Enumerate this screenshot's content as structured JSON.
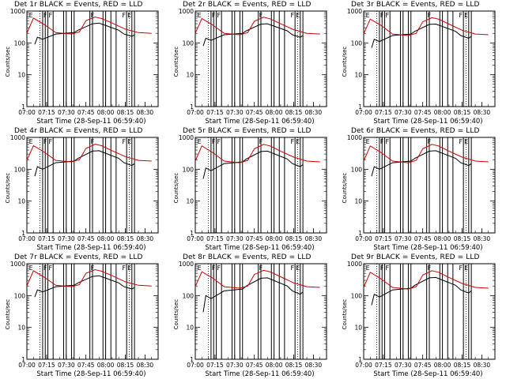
{
  "chart_data": [
    {
      "type": "line",
      "title": "Det 1r BLACK = Events, RED = LLD",
      "xlabel": "Start Time (28-Sep-11 06:59:40)",
      "ylabel": "Counts/sec",
      "yscale": "log",
      "ylim": [
        1,
        1000
      ],
      "xlim": [
        "07:00",
        "08:40"
      ],
      "x_ticks": [
        "07:00",
        "07:15",
        "07:30",
        "07:45",
        "08:00",
        "08:15",
        "08:30"
      ],
      "y_ticks": [
        "1",
        "10",
        "100",
        "1000"
      ],
      "series": [
        {
          "color": "#000000",
          "x": [
            "07:06",
            "07:08",
            "07:12",
            "07:22",
            "07:36",
            "07:39",
            "07:50",
            "07:55",
            "08:10",
            "08:14",
            "08:20",
            "08:22"
          ],
          "values": [
            90,
            150,
            130,
            190,
            210,
            250,
            400,
            420,
            250,
            190,
            160,
            180
          ]
        },
        {
          "color": "#cc0000",
          "x": [
            "07:00",
            "07:05",
            "07:13",
            "07:22",
            "07:34",
            "07:40",
            "07:45",
            "07:52",
            "07:57",
            "08:05",
            "08:15",
            "08:25",
            "08:35"
          ],
          "values": [
            200,
            600,
            380,
            210,
            190,
            220,
            500,
            650,
            580,
            420,
            270,
            210,
            200
          ]
        }
      ],
      "event_markers": [
        {
          "x": "07:01",
          "label": "E"
        },
        {
          "x": "07:12",
          "label": "F"
        },
        {
          "x": "07:16",
          "label": "F"
        },
        {
          "x": "07:48",
          "label": "F"
        },
        {
          "x": "08:12",
          "label": "F"
        },
        {
          "x": "08:16",
          "label": "E"
        }
      ]
    },
    {
      "type": "line",
      "title": "Det 2r BLACK = Events, RED = LLD",
      "xlabel": "Start Time (28-Sep-11 06:59:40)",
      "ylabel": "Counts/sec",
      "yscale": "log",
      "ylim": [
        1,
        1000
      ],
      "xlim": [
        "07:00",
        "08:40"
      ],
      "x_ticks": [
        "07:00",
        "07:15",
        "07:30",
        "07:45",
        "08:00",
        "08:15",
        "08:30"
      ],
      "y_ticks": [
        "1",
        "10",
        "100",
        "1000"
      ],
      "series": [
        {
          "color": "#000000",
          "x": [
            "07:06",
            "07:08",
            "07:12",
            "07:22",
            "07:36",
            "07:39",
            "07:50",
            "07:55",
            "08:10",
            "08:14",
            "08:20",
            "08:22"
          ],
          "values": [
            80,
            140,
            120,
            180,
            200,
            240,
            390,
            400,
            240,
            180,
            150,
            170
          ]
        },
        {
          "color": "#cc0000",
          "x": [
            "07:00",
            "07:05",
            "07:13",
            "07:22",
            "07:34",
            "07:40",
            "07:45",
            "07:52",
            "07:57",
            "08:05",
            "08:15",
            "08:25",
            "08:35"
          ],
          "values": [
            200,
            580,
            370,
            200,
            180,
            210,
            480,
            640,
            570,
            400,
            260,
            200,
            190
          ]
        }
      ],
      "event_markers": [
        {
          "x": "07:01",
          "label": "E"
        },
        {
          "x": "07:12",
          "label": "F"
        },
        {
          "x": "07:16",
          "label": "F"
        },
        {
          "x": "07:48",
          "label": "F"
        },
        {
          "x": "08:12",
          "label": "F"
        },
        {
          "x": "08:16",
          "label": "E"
        }
      ]
    },
    {
      "type": "line",
      "title": "Det 3r BLACK = Events, RED = LLD",
      "xlabel": "Start Time (28-Sep-11 06:59:40)",
      "ylabel": "Counts/sec",
      "yscale": "log",
      "ylim": [
        1,
        1000
      ],
      "xlim": [
        "07:00",
        "08:40"
      ],
      "x_ticks": [
        "07:00",
        "07:15",
        "07:30",
        "07:45",
        "08:00",
        "08:15",
        "08:30"
      ],
      "y_ticks": [
        "1",
        "10",
        "100",
        "1000"
      ],
      "series": [
        {
          "color": "#000000",
          "x": [
            "07:06",
            "07:08",
            "07:12",
            "07:22",
            "07:36",
            "07:39",
            "07:50",
            "07:55",
            "08:10",
            "08:14",
            "08:20",
            "08:22"
          ],
          "values": [
            70,
            130,
            110,
            170,
            190,
            230,
            380,
            390,
            230,
            170,
            140,
            160
          ]
        },
        {
          "color": "#cc0000",
          "x": [
            "07:00",
            "07:05",
            "07:13",
            "07:22",
            "07:34",
            "07:40",
            "07:45",
            "07:52",
            "07:57",
            "08:05",
            "08:15",
            "08:25",
            "08:35"
          ],
          "values": [
            190,
            560,
            360,
            190,
            170,
            200,
            460,
            620,
            560,
            390,
            250,
            190,
            180
          ]
        }
      ],
      "event_markers": [
        {
          "x": "07:01",
          "label": "E"
        },
        {
          "x": "07:12",
          "label": "F"
        },
        {
          "x": "07:16",
          "label": "F"
        },
        {
          "x": "07:48",
          "label": "F"
        },
        {
          "x": "08:12",
          "label": "F"
        },
        {
          "x": "08:16",
          "label": "E"
        }
      ]
    },
    {
      "type": "line",
      "title": "Det 4r BLACK = Events, RED = LLD",
      "xlabel": "Start Time (28-Sep-11 06:59:40)",
      "ylabel": "Counts/sec",
      "yscale": "log",
      "ylim": [
        1,
        1000
      ],
      "xlim": [
        "07:00",
        "08:40"
      ],
      "x_ticks": [
        "07:00",
        "07:15",
        "07:30",
        "07:45",
        "08:00",
        "08:15",
        "08:30"
      ],
      "y_ticks": [
        "1",
        "10",
        "100",
        "1000"
      ],
      "series": [
        {
          "color": "#000000",
          "x": [
            "07:06",
            "07:08",
            "07:12",
            "07:22",
            "07:36",
            "07:39",
            "07:50",
            "07:55",
            "08:10",
            "08:14",
            "08:20",
            "08:22"
          ],
          "values": [
            60,
            120,
            100,
            160,
            180,
            220,
            370,
            380,
            220,
            160,
            130,
            150
          ]
        },
        {
          "color": "#cc0000",
          "x": [
            "07:00",
            "07:05",
            "07:13",
            "07:22",
            "07:34",
            "07:40",
            "07:45",
            "07:52",
            "07:57",
            "08:05",
            "08:15",
            "08:25",
            "08:35"
          ],
          "values": [
            190,
            550,
            350,
            190,
            170,
            200,
            450,
            610,
            550,
            380,
            250,
            190,
            180
          ]
        }
      ],
      "event_markers": [
        {
          "x": "07:01",
          "label": "E"
        },
        {
          "x": "07:12",
          "label": "F"
        },
        {
          "x": "07:16",
          "label": "F"
        },
        {
          "x": "07:48",
          "label": "F"
        },
        {
          "x": "08:12",
          "label": "F"
        },
        {
          "x": "08:16",
          "label": "E"
        }
      ]
    },
    {
      "type": "line",
      "title": "Det 5r BLACK = Events, RED = LLD",
      "xlabel": "Start Time (28-Sep-11 06:59:40)",
      "ylabel": "Counts/sec",
      "yscale": "log",
      "ylim": [
        1,
        1000
      ],
      "xlim": [
        "07:00",
        "08:40"
      ],
      "x_ticks": [
        "07:00",
        "07:15",
        "07:30",
        "07:45",
        "08:00",
        "08:15",
        "08:30"
      ],
      "y_ticks": [
        "1",
        "10",
        "100",
        "1000"
      ],
      "series": [
        {
          "color": "#000000",
          "x": [
            "07:06",
            "07:08",
            "07:12",
            "07:22",
            "07:36",
            "07:39",
            "07:50",
            "07:55",
            "08:10",
            "08:14",
            "08:20",
            "08:22"
          ],
          "values": [
            50,
            110,
            90,
            150,
            170,
            210,
            360,
            370,
            210,
            150,
            120,
            140
          ]
        },
        {
          "color": "#cc0000",
          "x": [
            "07:00",
            "07:05",
            "07:13",
            "07:22",
            "07:34",
            "07:40",
            "07:45",
            "07:52",
            "07:57",
            "08:05",
            "08:15",
            "08:25",
            "08:35"
          ],
          "values": [
            180,
            540,
            340,
            180,
            160,
            190,
            440,
            600,
            540,
            370,
            240,
            180,
            170
          ]
        }
      ],
      "event_markers": [
        {
          "x": "07:01",
          "label": "E"
        },
        {
          "x": "07:12",
          "label": "F"
        },
        {
          "x": "07:16",
          "label": "F"
        },
        {
          "x": "07:48",
          "label": "F"
        },
        {
          "x": "08:12",
          "label": "F"
        },
        {
          "x": "08:16",
          "label": "E"
        }
      ]
    },
    {
      "type": "line",
      "title": "Det 6r BLACK = Events, RED = LLD",
      "xlabel": "Start Time (28-Sep-11 06:59:40)",
      "ylabel": "Counts/sec",
      "yscale": "log",
      "ylim": [
        1,
        1000
      ],
      "xlim": [
        "07:00",
        "08:40"
      ],
      "x_ticks": [
        "07:00",
        "07:15",
        "07:30",
        "07:45",
        "08:00",
        "08:15",
        "08:30"
      ],
      "y_ticks": [
        "1",
        "10",
        "100",
        "1000"
      ],
      "series": [
        {
          "color": "#000000",
          "x": [
            "07:06",
            "07:08",
            "07:12",
            "07:22",
            "07:36",
            "07:39",
            "07:50",
            "07:55",
            "08:10",
            "08:14",
            "08:20",
            "08:22"
          ],
          "values": [
            60,
            120,
            100,
            160,
            180,
            220,
            370,
            380,
            220,
            160,
            130,
            150
          ]
        },
        {
          "color": "#cc0000",
          "x": [
            "07:00",
            "07:05",
            "07:13",
            "07:22",
            "07:34",
            "07:40",
            "07:45",
            "07:52",
            "07:57",
            "08:05",
            "08:15",
            "08:25",
            "08:35"
          ],
          "values": [
            180,
            540,
            340,
            180,
            160,
            190,
            440,
            600,
            540,
            370,
            240,
            180,
            170
          ]
        }
      ],
      "event_markers": [
        {
          "x": "07:01",
          "label": "E"
        },
        {
          "x": "07:12",
          "label": "F"
        },
        {
          "x": "07:16",
          "label": "F"
        },
        {
          "x": "07:48",
          "label": "F"
        },
        {
          "x": "08:12",
          "label": "F"
        },
        {
          "x": "08:16",
          "label": "E"
        }
      ]
    },
    {
      "type": "line",
      "title": "Det 7r BLACK = Events, RED = LLD",
      "xlabel": "Start Time (28-Sep-11 06:59:40)",
      "ylabel": "Counts/sec",
      "yscale": "log",
      "ylim": [
        1,
        1000
      ],
      "xlim": [
        "07:00",
        "08:40"
      ],
      "x_ticks": [
        "07:00",
        "07:15",
        "07:30",
        "07:45",
        "08:00",
        "08:15",
        "08:30"
      ],
      "y_ticks": [
        "1",
        "10",
        "100",
        "1000"
      ],
      "series": [
        {
          "color": "#000000",
          "x": [
            "07:06",
            "07:08",
            "07:12",
            "07:22",
            "07:36",
            "07:39",
            "07:50",
            "07:55",
            "08:10",
            "08:14",
            "08:20",
            "08:22"
          ],
          "values": [
            90,
            150,
            130,
            190,
            210,
            250,
            400,
            420,
            250,
            190,
            160,
            180
          ]
        },
        {
          "color": "#cc0000",
          "x": [
            "07:00",
            "07:05",
            "07:13",
            "07:22",
            "07:34",
            "07:40",
            "07:45",
            "07:52",
            "07:57",
            "08:05",
            "08:15",
            "08:25",
            "08:35"
          ],
          "values": [
            200,
            600,
            380,
            210,
            190,
            220,
            500,
            650,
            580,
            420,
            270,
            210,
            200
          ]
        }
      ],
      "event_markers": [
        {
          "x": "07:01",
          "label": "E"
        },
        {
          "x": "07:12",
          "label": "F"
        },
        {
          "x": "07:16",
          "label": "F"
        },
        {
          "x": "07:48",
          "label": "F"
        },
        {
          "x": "08:12",
          "label": "F"
        },
        {
          "x": "08:16",
          "label": "E"
        }
      ]
    },
    {
      "type": "line",
      "title": "Det 8r BLACK = Events, RED = LLD",
      "xlabel": "Start Time (28-Sep-11 06:59:40)",
      "ylabel": "Counts/sec",
      "yscale": "log",
      "ylim": [
        1,
        1000
      ],
      "xlim": [
        "07:00",
        "08:40"
      ],
      "x_ticks": [
        "07:00",
        "07:15",
        "07:30",
        "07:45",
        "08:00",
        "08:15",
        "08:30"
      ],
      "y_ticks": [
        "1",
        "10",
        "100",
        "1000"
      ],
      "series": [
        {
          "color": "#000000",
          "x": [
            "07:06",
            "07:08",
            "07:12",
            "07:22",
            "07:36",
            "07:39",
            "07:50",
            "07:55",
            "08:10",
            "08:14",
            "08:20",
            "08:22"
          ],
          "values": [
            30,
            100,
            80,
            140,
            160,
            200,
            350,
            360,
            200,
            140,
            110,
            130
          ]
        },
        {
          "color": "#cc0000",
          "x": [
            "07:00",
            "07:05",
            "07:13",
            "07:22",
            "07:34",
            "07:40",
            "07:45",
            "07:52",
            "07:57",
            "08:05",
            "08:15",
            "08:25",
            "08:35"
          ],
          "values": [
            190,
            560,
            360,
            190,
            170,
            200,
            460,
            620,
            560,
            390,
            250,
            190,
            180
          ]
        }
      ],
      "event_markers": [
        {
          "x": "07:01",
          "label": "E"
        },
        {
          "x": "07:12",
          "label": "F"
        },
        {
          "x": "07:16",
          "label": "F"
        },
        {
          "x": "07:48",
          "label": "F"
        },
        {
          "x": "08:12",
          "label": "F"
        },
        {
          "x": "08:16",
          "label": "E"
        }
      ]
    },
    {
      "type": "line",
      "title": "Det 9r BLACK = Events, RED = LLD",
      "xlabel": "Start Time (28-Sep-11 06:59:40)",
      "ylabel": "Counts/sec",
      "yscale": "log",
      "ylim": [
        1,
        1000
      ],
      "xlim": [
        "07:00",
        "08:40"
      ],
      "x_ticks": [
        "07:00",
        "07:15",
        "07:30",
        "07:45",
        "08:00",
        "08:15",
        "08:30"
      ],
      "y_ticks": [
        "1",
        "10",
        "100",
        "1000"
      ],
      "series": [
        {
          "color": "#000000",
          "x": [
            "07:06",
            "07:08",
            "07:12",
            "07:22",
            "07:36",
            "07:39",
            "07:50",
            "07:55",
            "08:10",
            "08:14",
            "08:20",
            "08:22"
          ],
          "values": [
            50,
            110,
            90,
            150,
            170,
            210,
            360,
            370,
            210,
            150,
            120,
            140
          ]
        },
        {
          "color": "#cc0000",
          "x": [
            "07:00",
            "07:05",
            "07:13",
            "07:22",
            "07:34",
            "07:40",
            "07:45",
            "07:52",
            "07:57",
            "08:05",
            "08:15",
            "08:25",
            "08:35"
          ],
          "values": [
            180,
            540,
            340,
            180,
            160,
            190,
            440,
            600,
            540,
            370,
            240,
            180,
            170
          ]
        }
      ],
      "event_markers": [
        {
          "x": "07:01",
          "label": "E"
        },
        {
          "x": "07:12",
          "label": "F"
        },
        {
          "x": "07:16",
          "label": "F"
        },
        {
          "x": "07:48",
          "label": "F"
        },
        {
          "x": "08:12",
          "label": "F"
        },
        {
          "x": "08:16",
          "label": "E"
        }
      ]
    }
  ],
  "vertical_bars_minutes": [
    12,
    14,
    16,
    20,
    28,
    30,
    34,
    36,
    48,
    50,
    58,
    60,
    64,
    68,
    76,
    80,
    82
  ]
}
